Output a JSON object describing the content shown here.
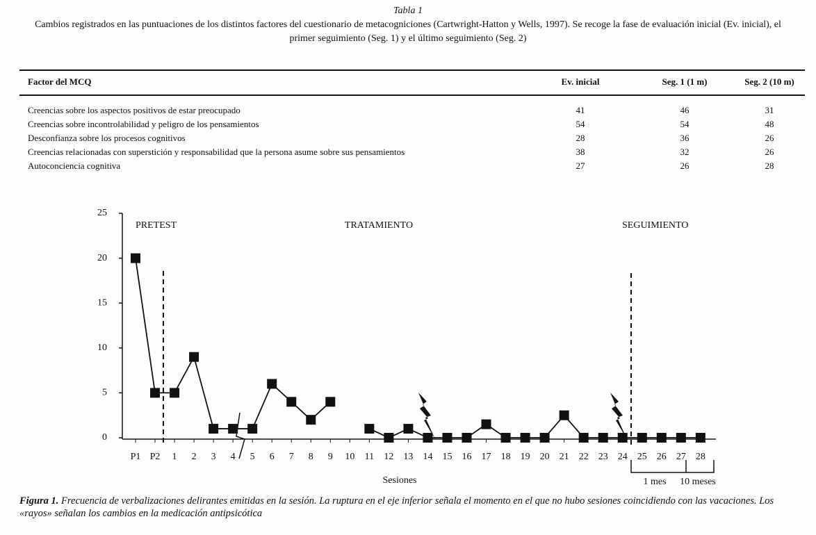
{
  "table": {
    "number": "Tabla 1",
    "caption": "Cambios registrados en las puntuaciones de los distintos factores del cuestionario de metacogniciones (Cartwright-Hatton y Wells, 1997). Se recoge la fase de evaluación inicial (Ev. inicial), el primer seguimiento (Seg. 1) y el último seguimiento (Seg. 2)",
    "headers": [
      "Factor del MCQ",
      "Ev. inicial",
      "Seg. 1 (1 m)",
      "Seg. 2 (10 m)"
    ],
    "rows": [
      [
        "Creencias sobre los aspectos positivos de estar preocupado",
        41,
        46,
        31
      ],
      [
        "Creencias sobre incontrolabilidad y peligro de los pensamientos",
        54,
        54,
        48
      ],
      [
        "Desconfianza sobre los procesos cognitivos",
        28,
        36,
        26
      ],
      [
        "Creencias relacionadas con superstición y responsabilidad que la persona asume sobre sus pensamientos",
        38,
        32,
        26
      ],
      [
        "Autoconciencia cognitiva",
        27,
        26,
        28
      ]
    ]
  },
  "chart_data": {
    "type": "line",
    "x_label": "Sesiones",
    "phases": [
      "PRETEST",
      "TRATAMIENTO",
      "SEGUIMIENTO"
    ],
    "followups": [
      "1 mes",
      "10 meses"
    ],
    "categories": [
      "P1",
      "P2",
      "1",
      "2",
      "3",
      "4",
      "5",
      "6",
      "7",
      "8",
      "9",
      "10",
      "11",
      "12",
      "13",
      "14",
      "15",
      "16",
      "17",
      "18",
      "19",
      "20",
      "21",
      "22",
      "23",
      "24",
      "25",
      "26",
      "27",
      "28"
    ],
    "series": [
      {
        "color": "#111111",
        "values": [
          20,
          5,
          5,
          9,
          1,
          1,
          1,
          6,
          4,
          2,
          4,
          null,
          1,
          0,
          1,
          0,
          0,
          0,
          1.5,
          0,
          0,
          0,
          2.5,
          0,
          0,
          0,
          0,
          0,
          0,
          0
        ]
      }
    ],
    "ylim": [
      0,
      25
    ],
    "yticks": [
      0,
      5,
      10,
      15,
      20,
      25
    ]
  },
  "figure": {
    "number": "Figura 1.",
    "caption": "Frecuencia de verbalizaciones delirantes emitidas en la sesión. La ruptura en el eje inferior señala el momento en el que no hubo sesiones coincidiendo con las vacaciones. Los «rayos» señalan los cambios en la medicación antipsicótica"
  }
}
